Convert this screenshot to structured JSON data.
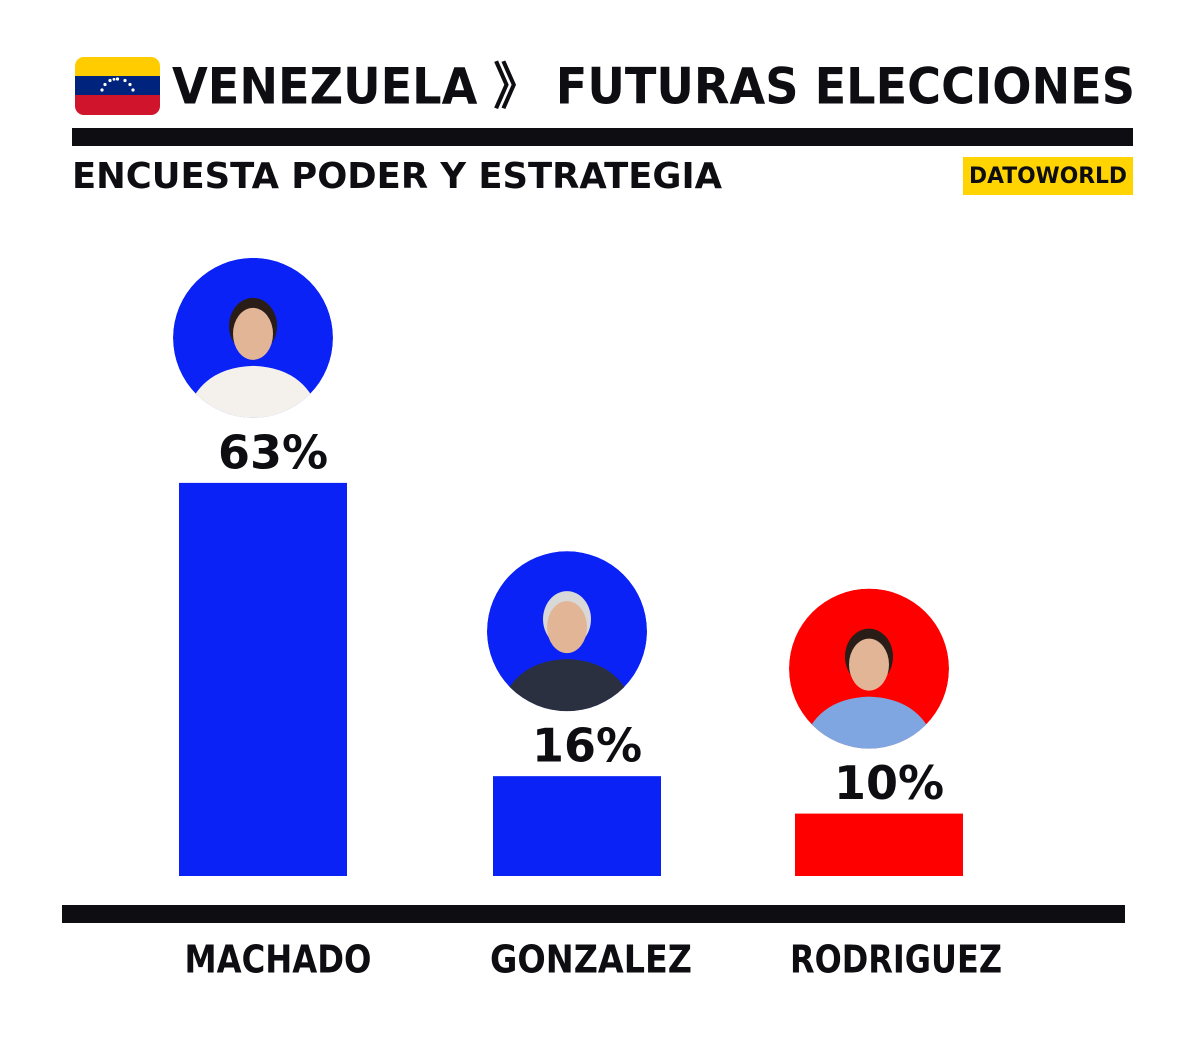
{
  "chart_data": {
    "type": "bar",
    "title": "VENEZUELA 》 FUTURAS ELECCIONES",
    "subtitle": "ENCUESTA PODER Y ESTRATEGIA",
    "source": "DATOWORLD",
    "categories": [
      "MACHADO",
      "GONZALEZ",
      "RODRIGUEZ"
    ],
    "values": [
      63,
      16,
      10
    ],
    "value_labels": [
      "63%",
      "16%",
      "10%"
    ],
    "colors": [
      "#0a22f5",
      "#0a22f5",
      "#ff0000"
    ]
  }
}
